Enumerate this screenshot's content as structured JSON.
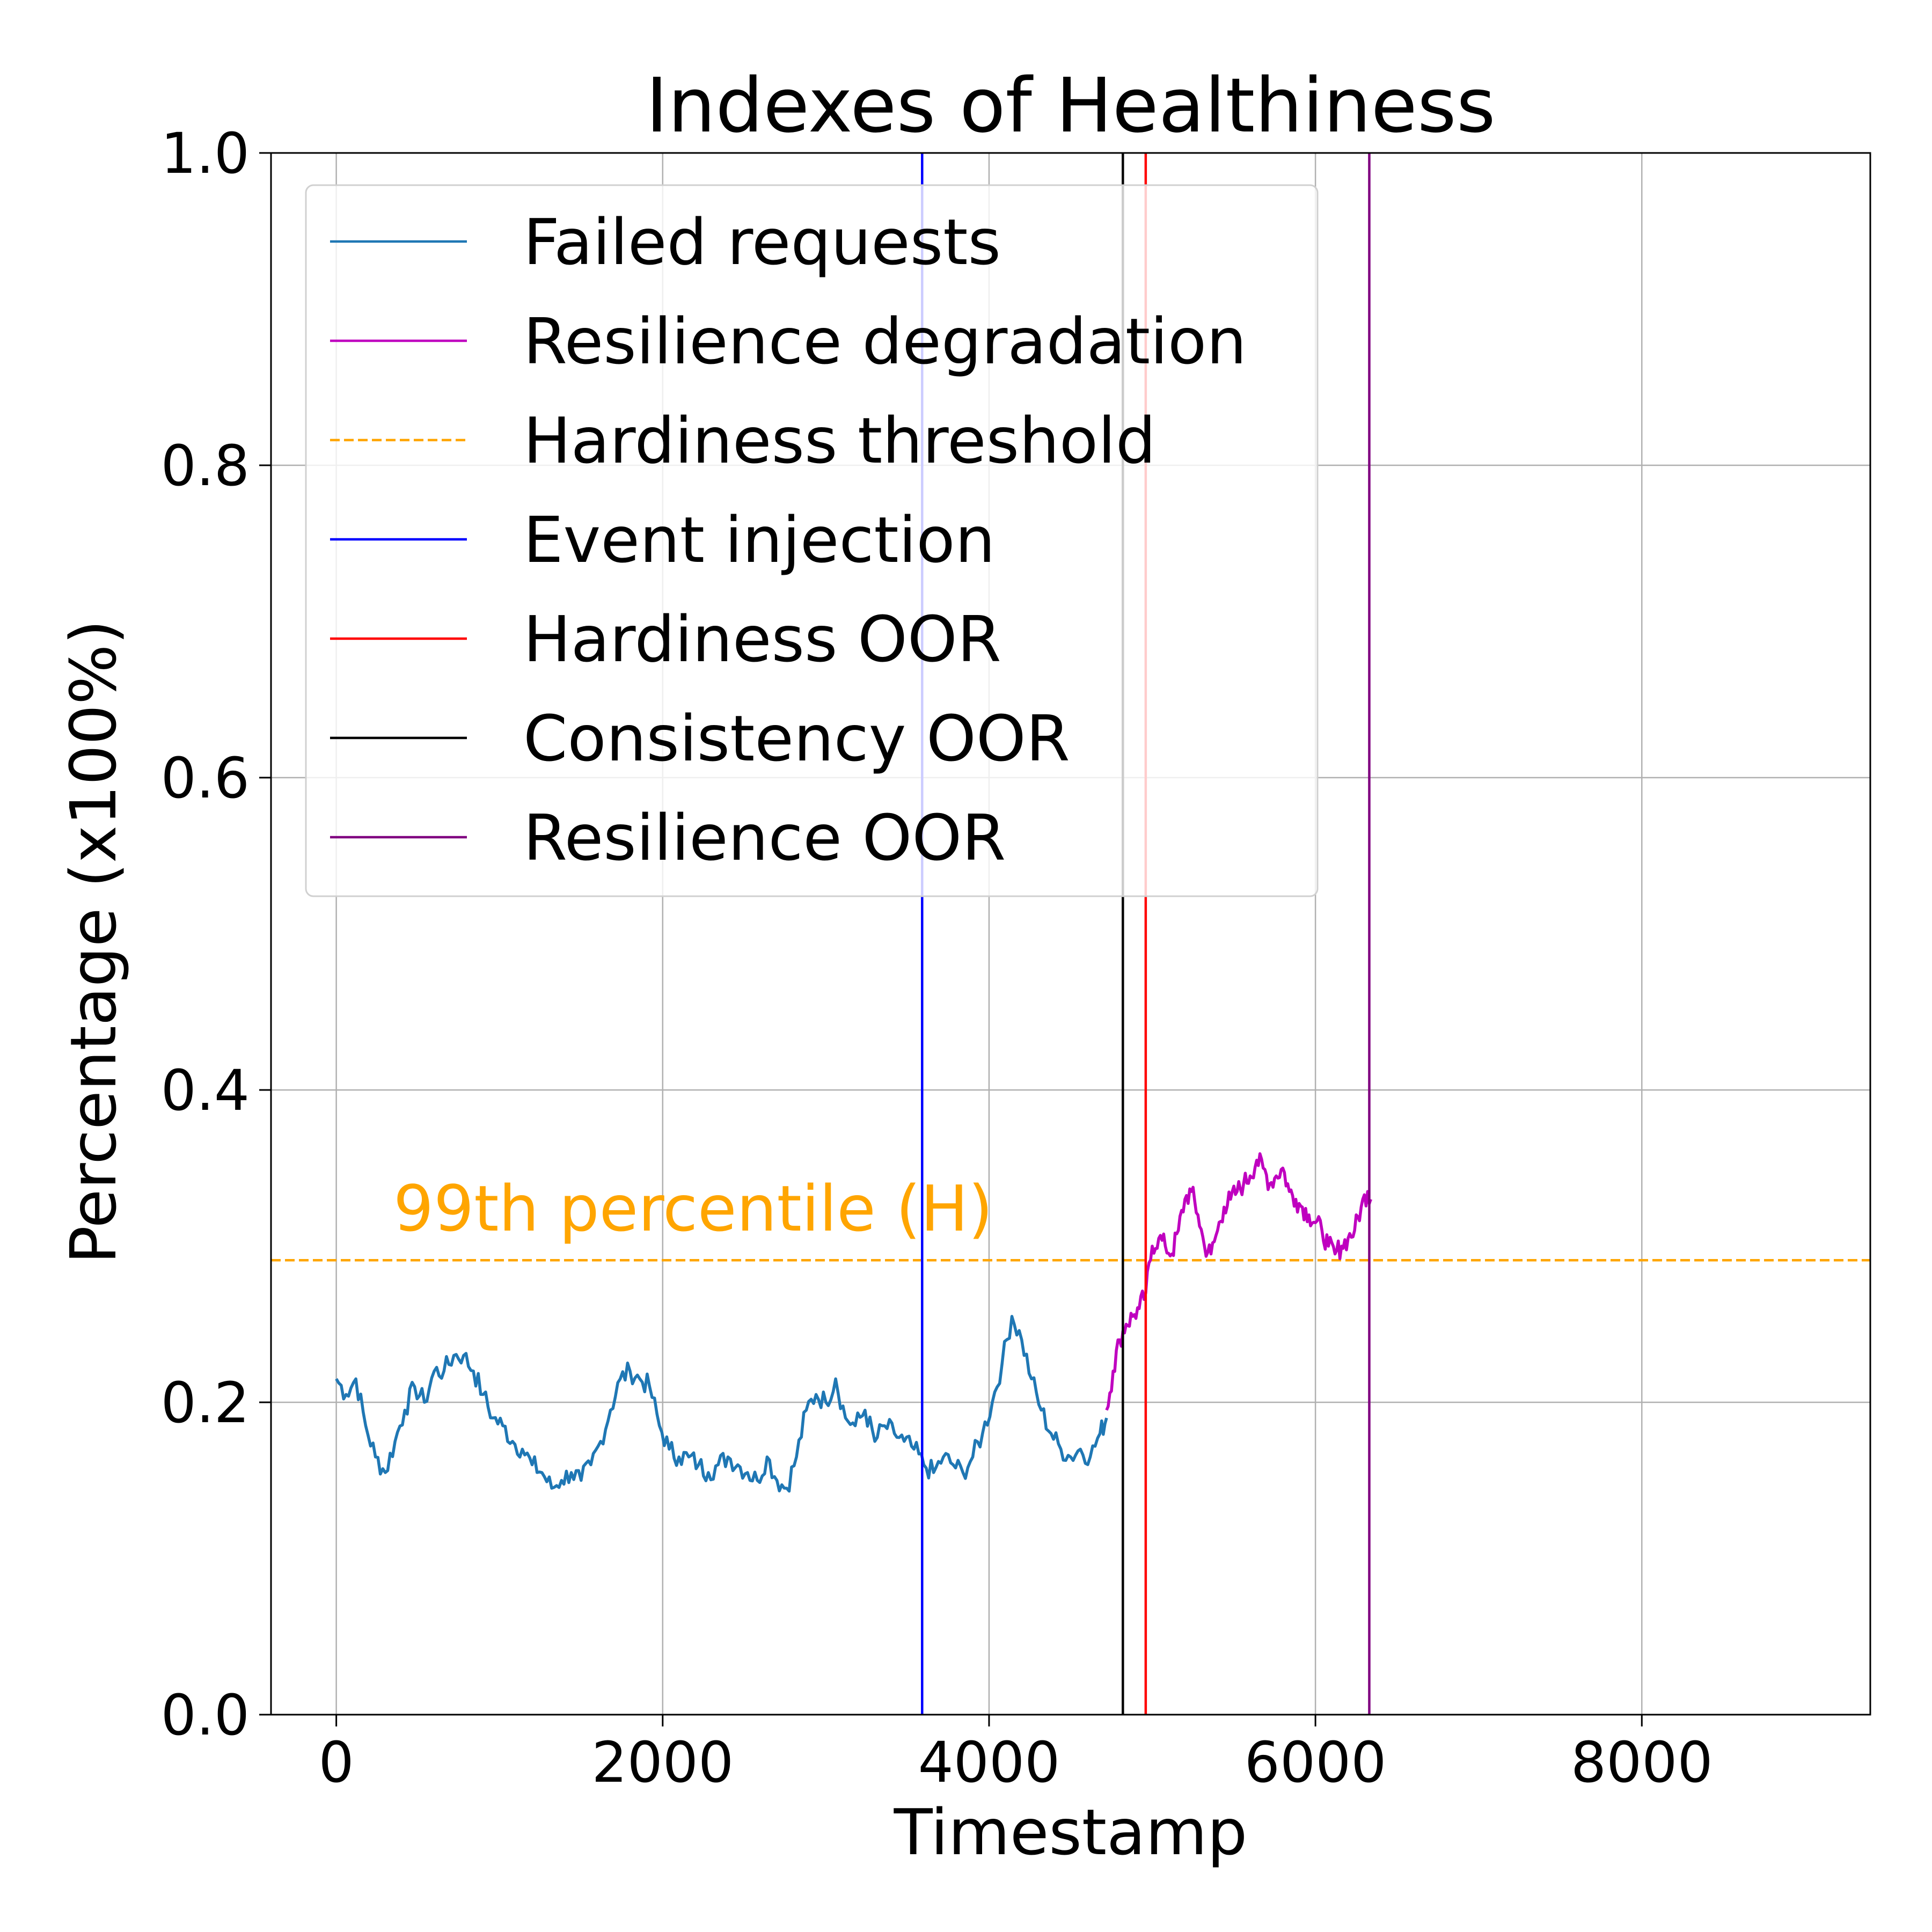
{
  "chart_data": {
    "type": "line",
    "title": "Indexes of Healthiness",
    "xlabel": "Timestamp",
    "ylabel": "Percentage (x100%)",
    "xlim": [
      -400,
      9400
    ],
    "ylim": [
      0.0,
      1.0
    ],
    "xticks": [
      0,
      2000,
      4000,
      6000,
      8000
    ],
    "xtick_labels": [
      "0",
      "2000",
      "4000",
      "6000",
      "8000"
    ],
    "yticks": [
      0.0,
      0.2,
      0.4,
      0.6,
      0.8,
      1.0
    ],
    "ytick_labels": [
      "0.0",
      "0.2",
      "0.4",
      "0.6",
      "0.8",
      "1.0"
    ],
    "grid": true,
    "legend_position": "upper-left",
    "series": [
      {
        "name": "Failed requests",
        "color": "#1f77b4",
        "x": [
          0,
          60,
          120,
          180,
          240,
          300,
          360,
          420,
          480,
          540,
          600,
          660,
          720,
          780,
          840,
          900,
          960,
          1020,
          1080,
          1140,
          1200,
          1260,
          1320,
          1380,
          1440,
          1500,
          1560,
          1620,
          1680,
          1740,
          1800,
          1860,
          1920,
          1980,
          2040,
          2100,
          2160,
          2220,
          2280,
          2340,
          2400,
          2460,
          2520,
          2580,
          2640,
          2700,
          2760,
          2820,
          2880,
          2940,
          3000,
          3060,
          3120,
          3180,
          3240,
          3300,
          3360,
          3420,
          3480,
          3540,
          3600,
          3660,
          3720,
          3780,
          3840,
          3900,
          3960,
          4020,
          4080,
          4140,
          4200,
          4260,
          4320,
          4380,
          4440,
          4500,
          4560,
          4620,
          4680,
          4720
        ],
        "y": [
          0.215,
          0.205,
          0.215,
          0.185,
          0.165,
          0.155,
          0.175,
          0.195,
          0.21,
          0.2,
          0.22,
          0.22,
          0.23,
          0.23,
          0.22,
          0.205,
          0.19,
          0.185,
          0.175,
          0.17,
          0.16,
          0.155,
          0.145,
          0.15,
          0.155,
          0.15,
          0.16,
          0.175,
          0.195,
          0.215,
          0.22,
          0.215,
          0.21,
          0.185,
          0.17,
          0.165,
          0.165,
          0.16,
          0.155,
          0.16,
          0.165,
          0.16,
          0.155,
          0.15,
          0.165,
          0.15,
          0.145,
          0.165,
          0.195,
          0.205,
          0.2,
          0.215,
          0.19,
          0.185,
          0.195,
          0.175,
          0.185,
          0.18,
          0.175,
          0.17,
          0.16,
          0.155,
          0.165,
          0.16,
          0.155,
          0.165,
          0.18,
          0.2,
          0.225,
          0.255,
          0.24,
          0.215,
          0.195,
          0.18,
          0.17,
          0.165,
          0.17,
          0.165,
          0.18,
          0.19
        ]
      },
      {
        "name": "Resilience degradation",
        "color": "#bf00bf",
        "x": [
          4720,
          4760,
          4800,
          4840,
          4880,
          4920,
          4960,
          5000,
          5040,
          5080,
          5120,
          5160,
          5200,
          5240,
          5280,
          5320,
          5360,
          5400,
          5440,
          5480,
          5520,
          5560,
          5600,
          5640,
          5680,
          5720,
          5760,
          5800,
          5840,
          5880,
          5920,
          5960,
          6000,
          6040,
          6080,
          6120,
          6160,
          6200,
          6240,
          6280,
          6320,
          6340
        ],
        "y": [
          0.195,
          0.22,
          0.24,
          0.25,
          0.255,
          0.26,
          0.27,
          0.3,
          0.305,
          0.3,
          0.295,
          0.31,
          0.33,
          0.335,
          0.32,
          0.3,
          0.295,
          0.31,
          0.325,
          0.33,
          0.335,
          0.34,
          0.345,
          0.355,
          0.35,
          0.34,
          0.345,
          0.35,
          0.335,
          0.33,
          0.325,
          0.32,
          0.315,
          0.31,
          0.3,
          0.295,
          0.3,
          0.305,
          0.31,
          0.325,
          0.335,
          0.33
        ]
      }
    ],
    "hlines": [
      {
        "name": "Hardiness threshold",
        "y": 0.291,
        "color": "#ffa500",
        "style": "dashed"
      }
    ],
    "vlines": [
      {
        "name": "Event injection",
        "x": 3590,
        "color": "#0000ff"
      },
      {
        "name": "Hardiness OOR",
        "x": 4960,
        "color": "#ff0000"
      },
      {
        "name": "Consistency OOR",
        "x": 4820,
        "color": "#000000"
      },
      {
        "name": "Resilience OOR",
        "x": 6330,
        "color": "#800080"
      }
    ],
    "annotation": {
      "text": "99th percentile (H)",
      "x": 350,
      "y": 0.31,
      "color": "#ffa500"
    },
    "legend": [
      {
        "label": "Failed requests",
        "color": "#1f77b4",
        "style": "solid"
      },
      {
        "label": "Resilience degradation",
        "color": "#bf00bf",
        "style": "solid"
      },
      {
        "label": "Hardiness threshold",
        "color": "#ffa500",
        "style": "dashed"
      },
      {
        "label": "Event injection",
        "color": "#0000ff",
        "style": "solid"
      },
      {
        "label": "Hardiness OOR",
        "color": "#ff0000",
        "style": "solid"
      },
      {
        "label": "Consistency OOR",
        "color": "#000000",
        "style": "solid"
      },
      {
        "label": "Resilience OOR",
        "color": "#800080",
        "style": "solid"
      }
    ]
  }
}
